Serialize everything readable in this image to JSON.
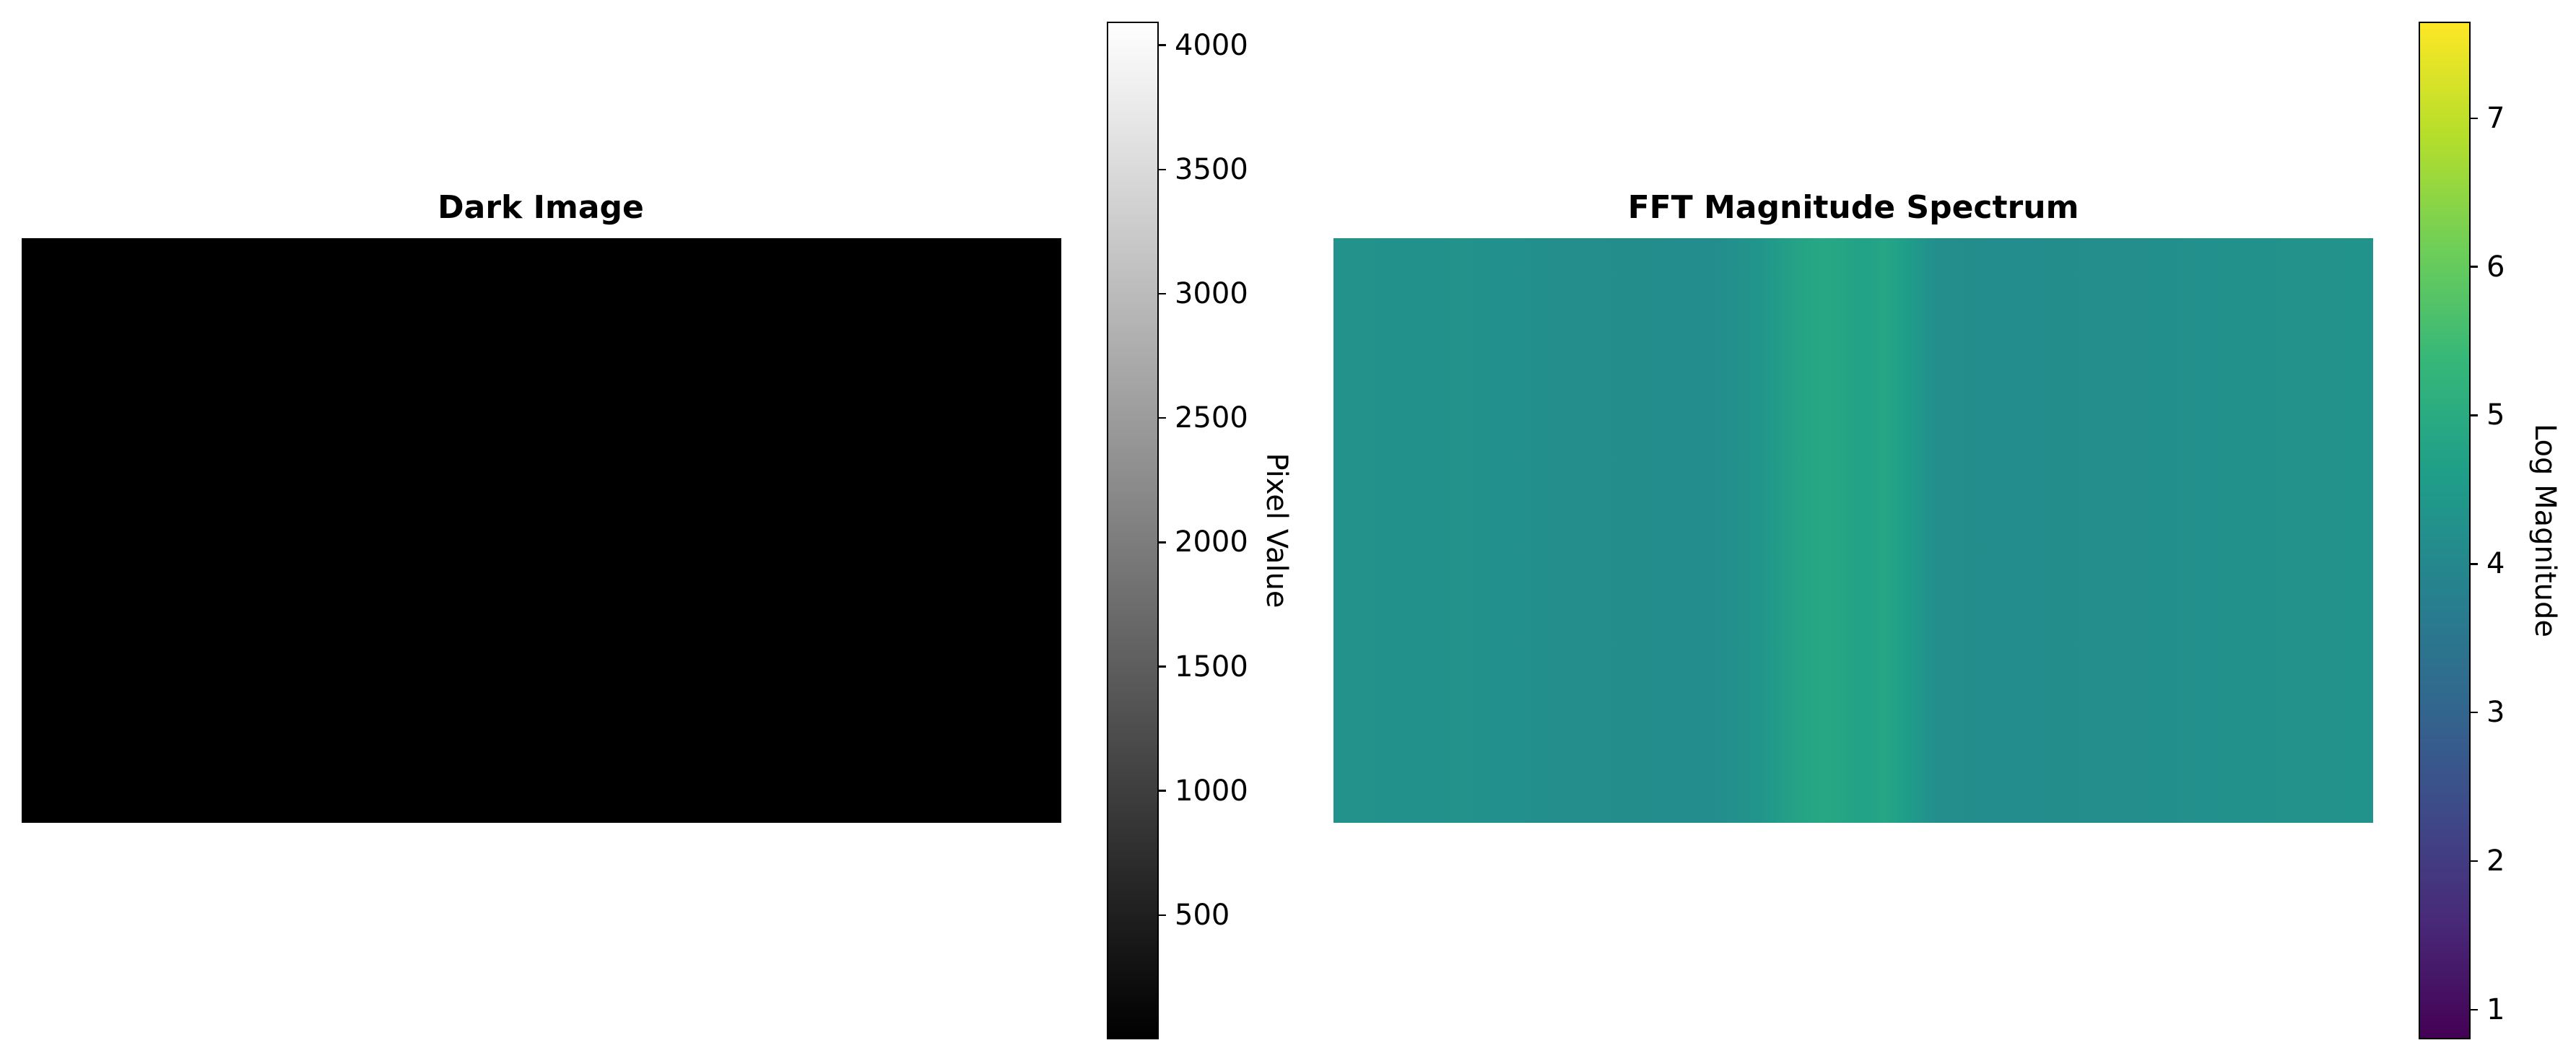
{
  "chart_data": [
    {
      "type": "heatmap",
      "title": "Dark Image",
      "colormap": "gray",
      "image_fill": "#000000",
      "colorbar": {
        "label": "Pixel Value",
        "range": [
          0,
          4095
        ],
        "ticks": [
          500,
          1000,
          1500,
          2000,
          2500,
          3000,
          3500,
          4000
        ],
        "tick_labels": [
          "500",
          "1000",
          "1500",
          "2000",
          "2500",
          "3000",
          "3500",
          "4000"
        ],
        "colors": [
          "#000000",
          "#ffffff"
        ]
      }
    },
    {
      "type": "heatmap",
      "title": "FFT Magnitude Spectrum",
      "colormap": "viridis",
      "base_value": 4.2,
      "column_profile": [
        {
          "x": 0.0,
          "v": 4.3
        },
        {
          "x": 0.08,
          "v": 4.23
        },
        {
          "x": 0.12,
          "v": 4.27
        },
        {
          "x": 0.22,
          "v": 4.18
        },
        {
          "x": 0.36,
          "v": 4.12
        },
        {
          "x": 0.41,
          "v": 4.35
        },
        {
          "x": 0.45,
          "v": 4.8
        },
        {
          "x": 0.47,
          "v": 4.88
        },
        {
          "x": 0.49,
          "v": 4.82
        },
        {
          "x": 0.51,
          "v": 4.72
        },
        {
          "x": 0.53,
          "v": 4.85
        },
        {
          "x": 0.55,
          "v": 4.6
        },
        {
          "x": 0.58,
          "v": 4.18
        },
        {
          "x": 0.65,
          "v": 4.12
        },
        {
          "x": 0.8,
          "v": 4.2
        },
        {
          "x": 0.88,
          "v": 4.26
        },
        {
          "x": 1.0,
          "v": 4.3
        }
      ],
      "colorbar": {
        "label": "Log Magnitude",
        "range": [
          0.8,
          7.65
        ],
        "ticks": [
          1,
          2,
          3,
          4,
          5,
          6,
          7
        ],
        "tick_labels": [
          "1",
          "2",
          "3",
          "4",
          "5",
          "6",
          "7"
        ],
        "colors": [
          "#440154",
          "#482878",
          "#3e4a89",
          "#31688e",
          "#26828e",
          "#1f9e89",
          "#35b779",
          "#6ece58",
          "#b5de2b",
          "#fde725"
        ]
      }
    }
  ]
}
